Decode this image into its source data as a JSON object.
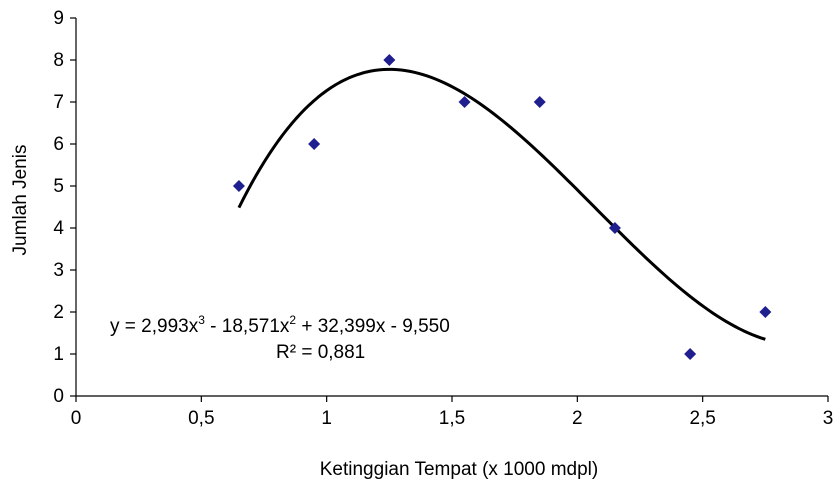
{
  "chart_data": {
    "type": "scatter",
    "xlabel": "Ketinggian Tempat (x 1000 mdpl)",
    "ylabel": "Jumlah Jenis",
    "xlim": [
      0,
      3
    ],
    "ylim": [
      0,
      9
    ],
    "x_ticks": [
      "0",
      "0,5",
      "1",
      "1,5",
      "2",
      "2,5",
      "3"
    ],
    "y_ticks": [
      "0",
      "1",
      "2",
      "3",
      "4",
      "5",
      "6",
      "7",
      "8",
      "9"
    ],
    "grid": false,
    "legend": "none",
    "series": [
      {
        "marker": "diamond",
        "color": "#1f1f8f",
        "x": [
          0.65,
          0.95,
          1.25,
          1.55,
          1.85,
          2.15,
          2.45,
          2.75
        ],
        "y": [
          5,
          6,
          8,
          7,
          7,
          4,
          1,
          2
        ]
      }
    ],
    "trendline": {
      "type": "polynomial",
      "order": 3,
      "color": "#000000",
      "coefficients": [
        2.993,
        -18.571,
        32.399,
        -9.55
      ],
      "x_range": [
        0.65,
        2.75
      ],
      "equation_label": {
        "prefix": "y = 2,993x",
        "exp1": "3",
        "mid": " - 18,571x",
        "exp2": "2",
        "suffix": " + 32,399x - 9,550"
      },
      "r2_label": "R² = 0,881"
    }
  }
}
